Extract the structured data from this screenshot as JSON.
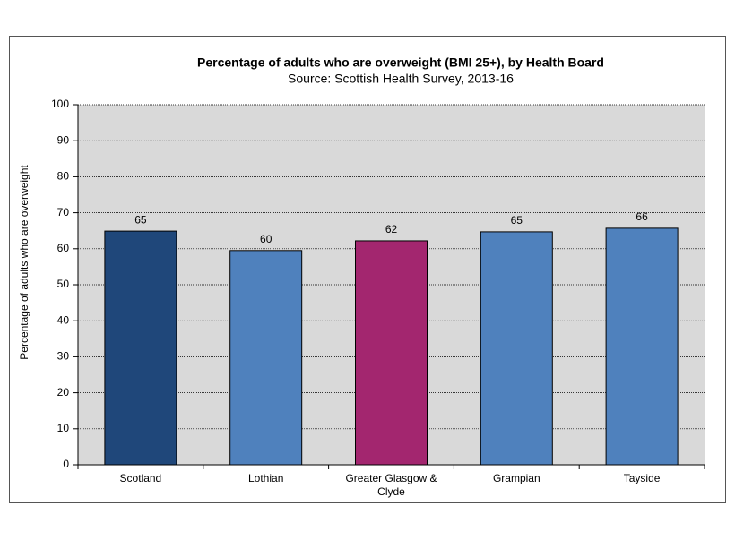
{
  "chart_data": {
    "type": "bar",
    "title": "Percentage of adults who are overweight (BMI 25+), by Health Board",
    "subtitle": "Source: Scottish Health Survey, 2013-16",
    "y_label": "Percentage of adults who are overweight",
    "categories": [
      "Scotland",
      "Lothian",
      "Greater Glasgow & Clyde",
      "Grampian",
      "Tayside"
    ],
    "values": [
      64.9,
      59.5,
      62.2,
      64.7,
      65.7
    ],
    "value_labels": [
      "65",
      "60",
      "62",
      "65",
      "66"
    ],
    "colors": [
      "#1f477a",
      "#4f81bd",
      "#a3266f",
      "#4f81bd",
      "#4f81bd"
    ],
    "ylim": [
      0,
      100
    ],
    "yticks": [
      0,
      10,
      20,
      30,
      40,
      50,
      60,
      70,
      80,
      90,
      100
    ],
    "grid": true
  }
}
